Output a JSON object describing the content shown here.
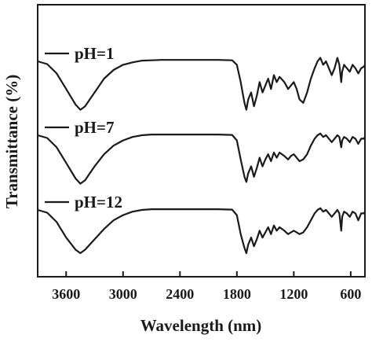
{
  "chart_data": {
    "type": "line",
    "title": "",
    "xlabel": "Wavelength (nm)",
    "ylabel": "Transmittance (%)",
    "xlim": [
      3900,
      450
    ],
    "x_reversed": true,
    "y_ticks_shown": false,
    "legend": "inline labels at left of each curve",
    "x_ticks": [
      3600,
      3000,
      2400,
      1800,
      1200,
      600
    ],
    "x_tick_labels": [
      "3600",
      "3000",
      "2400",
      "1800",
      "1200",
      "600"
    ],
    "stacked_offset_curves": true,
    "series": [
      {
        "name": "pH=1",
        "points": [
          [
            3900,
            0
          ],
          [
            3800,
            -0.8
          ],
          [
            3700,
            -3.5
          ],
          [
            3600,
            -8
          ],
          [
            3500,
            -12.5
          ],
          [
            3450,
            -14
          ],
          [
            3400,
            -13
          ],
          [
            3300,
            -9
          ],
          [
            3200,
            -5
          ],
          [
            3100,
            -2.5
          ],
          [
            3000,
            -1
          ],
          [
            2900,
            -0.3
          ],
          [
            2800,
            0.2
          ],
          [
            2700,
            0.3
          ],
          [
            2600,
            0.4
          ],
          [
            2400,
            0.4
          ],
          [
            2200,
            0.4
          ],
          [
            2000,
            0.4
          ],
          [
            1850,
            0.3
          ],
          [
            1800,
            -1
          ],
          [
            1760,
            -6
          ],
          [
            1720,
            -12
          ],
          [
            1700,
            -14
          ],
          [
            1680,
            -11
          ],
          [
            1650,
            -9
          ],
          [
            1620,
            -13
          ],
          [
            1590,
            -10
          ],
          [
            1560,
            -6
          ],
          [
            1530,
            -9
          ],
          [
            1500,
            -7
          ],
          [
            1470,
            -5
          ],
          [
            1440,
            -8
          ],
          [
            1410,
            -4
          ],
          [
            1380,
            -6
          ],
          [
            1350,
            -4.5
          ],
          [
            1300,
            -6
          ],
          [
            1260,
            -8
          ],
          [
            1230,
            -7
          ],
          [
            1200,
            -6
          ],
          [
            1170,
            -8
          ],
          [
            1140,
            -11
          ],
          [
            1100,
            -12
          ],
          [
            1060,
            -9
          ],
          [
            1020,
            -5
          ],
          [
            980,
            -2
          ],
          [
            950,
            0
          ],
          [
            920,
            1
          ],
          [
            890,
            -1
          ],
          [
            860,
            0
          ],
          [
            830,
            -2
          ],
          [
            800,
            -4
          ],
          [
            770,
            -2
          ],
          [
            740,
            1
          ],
          [
            720,
            -1
          ],
          [
            700,
            -6
          ],
          [
            690,
            -3
          ],
          [
            670,
            -1
          ],
          [
            640,
            -2
          ],
          [
            610,
            -3
          ],
          [
            580,
            -1
          ],
          [
            550,
            -2
          ],
          [
            520,
            -3.5
          ],
          [
            490,
            -2
          ],
          [
            460,
            -1.5
          ],
          [
            450,
            -1
          ]
        ]
      },
      {
        "name": "pH=7",
        "points": [
          [
            3900,
            0
          ],
          [
            3800,
            -0.8
          ],
          [
            3700,
            -3.5
          ],
          [
            3600,
            -8
          ],
          [
            3500,
            -12.5
          ],
          [
            3450,
            -14
          ],
          [
            3400,
            -13
          ],
          [
            3300,
            -9
          ],
          [
            3200,
            -5.5
          ],
          [
            3100,
            -3
          ],
          [
            3000,
            -1.5
          ],
          [
            2900,
            -0.5
          ],
          [
            2800,
            0
          ],
          [
            2700,
            0.2
          ],
          [
            2600,
            0.2
          ],
          [
            2400,
            0.2
          ],
          [
            2200,
            0.2
          ],
          [
            2000,
            0.2
          ],
          [
            1850,
            0.1
          ],
          [
            1800,
            -1.5
          ],
          [
            1760,
            -7
          ],
          [
            1720,
            -12
          ],
          [
            1700,
            -13.5
          ],
          [
            1680,
            -11
          ],
          [
            1650,
            -9
          ],
          [
            1620,
            -12
          ],
          [
            1590,
            -9.5
          ],
          [
            1560,
            -6.5
          ],
          [
            1530,
            -9
          ],
          [
            1500,
            -7
          ],
          [
            1470,
            -5.5
          ],
          [
            1440,
            -7.5
          ],
          [
            1410,
            -5
          ],
          [
            1380,
            -6.5
          ],
          [
            1350,
            -5
          ],
          [
            1300,
            -6
          ],
          [
            1260,
            -7
          ],
          [
            1230,
            -6
          ],
          [
            1200,
            -5.5
          ],
          [
            1170,
            -6.5
          ],
          [
            1140,
            -7.5
          ],
          [
            1100,
            -7
          ],
          [
            1060,
            -5.5
          ],
          [
            1020,
            -3
          ],
          [
            980,
            -1
          ],
          [
            950,
            0
          ],
          [
            920,
            0.5
          ],
          [
            890,
            -0.5
          ],
          [
            860,
            0
          ],
          [
            830,
            -1
          ],
          [
            800,
            -2
          ],
          [
            770,
            -1
          ],
          [
            740,
            0
          ],
          [
            720,
            -0.5
          ],
          [
            700,
            -3.5
          ],
          [
            690,
            -1.5
          ],
          [
            670,
            -0.5
          ],
          [
            640,
            -1
          ],
          [
            610,
            -2
          ],
          [
            580,
            -0.5
          ],
          [
            550,
            -1
          ],
          [
            520,
            -2.5
          ],
          [
            490,
            -1
          ],
          [
            460,
            -1
          ],
          [
            450,
            -0.5
          ]
        ]
      },
      {
        "name": "pH=12",
        "points": [
          [
            3900,
            0
          ],
          [
            3800,
            -0.8
          ],
          [
            3700,
            -3.5
          ],
          [
            3600,
            -8
          ],
          [
            3500,
            -11.5
          ],
          [
            3450,
            -12.5
          ],
          [
            3400,
            -11.5
          ],
          [
            3300,
            -8.5
          ],
          [
            3200,
            -5.5
          ],
          [
            3100,
            -3
          ],
          [
            3000,
            -1.5
          ],
          [
            2900,
            -0.5
          ],
          [
            2800,
            0
          ],
          [
            2700,
            0.2
          ],
          [
            2600,
            0.2
          ],
          [
            2400,
            0.2
          ],
          [
            2200,
            0.2
          ],
          [
            2000,
            0.2
          ],
          [
            1850,
            0.1
          ],
          [
            1800,
            -1.5
          ],
          [
            1760,
            -7
          ],
          [
            1720,
            -11
          ],
          [
            1700,
            -12.5
          ],
          [
            1680,
            -10
          ],
          [
            1650,
            -8
          ],
          [
            1620,
            -10.5
          ],
          [
            1590,
            -8.5
          ],
          [
            1560,
            -6
          ],
          [
            1530,
            -8
          ],
          [
            1500,
            -6.5
          ],
          [
            1470,
            -5
          ],
          [
            1440,
            -7
          ],
          [
            1410,
            -4.5
          ],
          [
            1380,
            -6
          ],
          [
            1350,
            -5
          ],
          [
            1300,
            -6
          ],
          [
            1260,
            -7
          ],
          [
            1230,
            -6.5
          ],
          [
            1200,
            -6
          ],
          [
            1170,
            -6.5
          ],
          [
            1140,
            -7
          ],
          [
            1100,
            -6.5
          ],
          [
            1060,
            -5
          ],
          [
            1020,
            -3
          ],
          [
            980,
            -1
          ],
          [
            950,
            0
          ],
          [
            920,
            0.5
          ],
          [
            890,
            -0.5
          ],
          [
            860,
            0
          ],
          [
            830,
            -1
          ],
          [
            800,
            -2
          ],
          [
            770,
            -1
          ],
          [
            740,
            0
          ],
          [
            720,
            -1
          ],
          [
            700,
            -6
          ],
          [
            690,
            -2
          ],
          [
            670,
            -0.5
          ],
          [
            640,
            -1
          ],
          [
            610,
            -2
          ],
          [
            580,
            -0.5
          ],
          [
            550,
            -1
          ],
          [
            520,
            -3
          ],
          [
            490,
            -1
          ],
          [
            460,
            -1
          ],
          [
            450,
            -0.5
          ]
        ]
      }
    ]
  }
}
